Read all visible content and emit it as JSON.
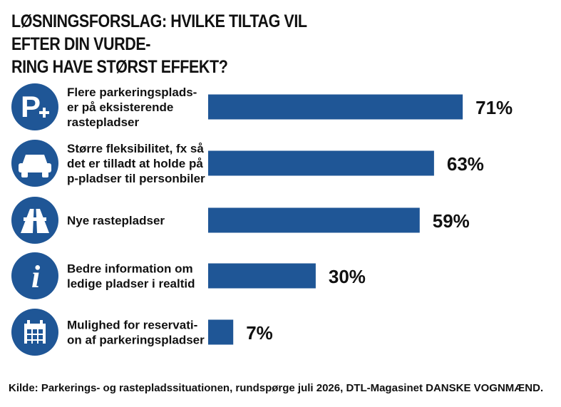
{
  "title_lines": [
    "LØSNINGSFORSLAG: HVILKE TILTAG VIL EFTER DIN VURDE-",
    "RING HAVE STØRST EFFEKT?"
  ],
  "source": "Kilde: Parkerings- og rastepladssituationen, rundspørge juli 2026, DTL-Magasinet DANSKE VOGNMÆND.",
  "colors": {
    "bar": "#1f5696",
    "icon_circle": "#1f5696",
    "text": "#111111",
    "background": "#ffffff"
  },
  "chart_data": {
    "type": "bar",
    "orientation": "horizontal",
    "value_suffix": "%",
    "categories": [
      {
        "label_lines": [
          "Flere parkeringsplads-",
          "er på eksisterende",
          "rastepladser"
        ],
        "value": 71,
        "icon": "parking-plus-icon"
      },
      {
        "label_lines": [
          "Større fleksibilitet, fx så",
          "det er tilladt at holde på",
          "p-pladser til personbiler"
        ],
        "value": 63,
        "icon": "car-icon"
      },
      {
        "label_lines": [
          "Nye rastepladser"
        ],
        "value": 59,
        "icon": "motorway-icon"
      },
      {
        "label_lines": [
          "Bedre information om",
          "ledige pladser i realtid"
        ],
        "value": 30,
        "icon": "info-icon"
      },
      {
        "label_lines": [
          "Mulighed for reservati-",
          "on af parkeringspladser"
        ],
        "value": 7,
        "icon": "calendar-icon"
      }
    ]
  }
}
